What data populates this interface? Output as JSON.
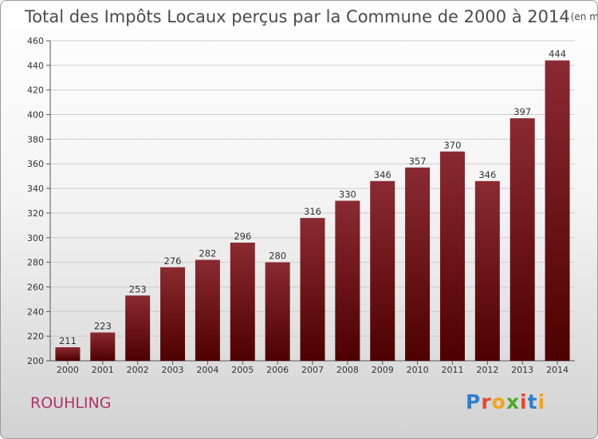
{
  "chart_data": {
    "type": "bar",
    "title": "Total des Impôts Locaux perçus par la Commune de 2000 à 2014",
    "subtitle": "(en milliers d'€)",
    "categories": [
      "2000",
      "2001",
      "2002",
      "2003",
      "2004",
      "2005",
      "2006",
      "2007",
      "2008",
      "2009",
      "2010",
      "2011",
      "2012",
      "2013",
      "2014"
    ],
    "values": [
      211,
      223,
      253,
      276,
      282,
      296,
      280,
      316,
      330,
      346,
      357,
      370,
      346,
      397,
      444
    ],
    "ylim": [
      200,
      460
    ],
    "yticks": [
      200,
      220,
      240,
      260,
      280,
      300,
      320,
      340,
      360,
      380,
      400,
      420,
      440,
      460
    ],
    "xlabel": "",
    "ylabel": "",
    "grid": true
  },
  "commune": "ROUHLING",
  "logo": {
    "letters": [
      "P",
      "r",
      "o",
      "x",
      "i",
      "t",
      "i"
    ],
    "colors": [
      "#2f7fd0",
      "#e8462a",
      "#f2a51a",
      "#4da82b",
      "#e8462a",
      "#2f7fd0",
      "#f2a51a"
    ]
  },
  "colors": {
    "bar_top": "#8a2a32",
    "bar_bottom": "#4e0000",
    "grid": "#cccccc"
  }
}
